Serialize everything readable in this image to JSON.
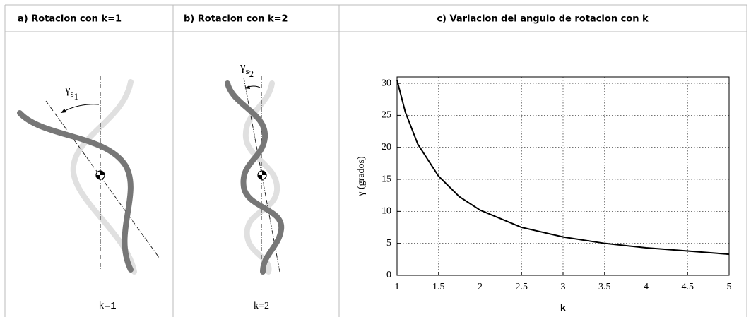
{
  "panels": [
    {
      "title": "a) Rotacion con k=1",
      "angle_symbol": "γ",
      "angle_subscript": "s",
      "angle_index": "1",
      "caption": "k=1"
    },
    {
      "title": "b) Rotacion con k=2",
      "angle_symbol": "γ",
      "angle_subscript": "s",
      "angle_index": "2",
      "caption": "k=2"
    }
  ],
  "chart_data": {
    "type": "line",
    "title": "c) Variacion del angulo de rotacion con k",
    "xlabel": "k",
    "ylabel": "γ (grados)",
    "x": [
      1,
      1.1,
      1.25,
      1.5,
      1.75,
      2,
      2.5,
      3,
      3.5,
      4,
      4.5,
      5
    ],
    "series": [
      {
        "color": "#000000",
        "values": [
          30.5,
          25.5,
          20.5,
          15.5,
          12.3,
          10.2,
          7.5,
          6.0,
          5.0,
          4.3,
          3.8,
          3.3
        ]
      }
    ],
    "xlim": [
      1,
      5
    ],
    "xticks": [
      1,
      1.5,
      2,
      2.5,
      3,
      3.5,
      4,
      4.5,
      5
    ],
    "ylim": [
      0,
      31
    ],
    "yticks": [
      0,
      5,
      10,
      15,
      20,
      25,
      30
    ],
    "grid": true
  }
}
